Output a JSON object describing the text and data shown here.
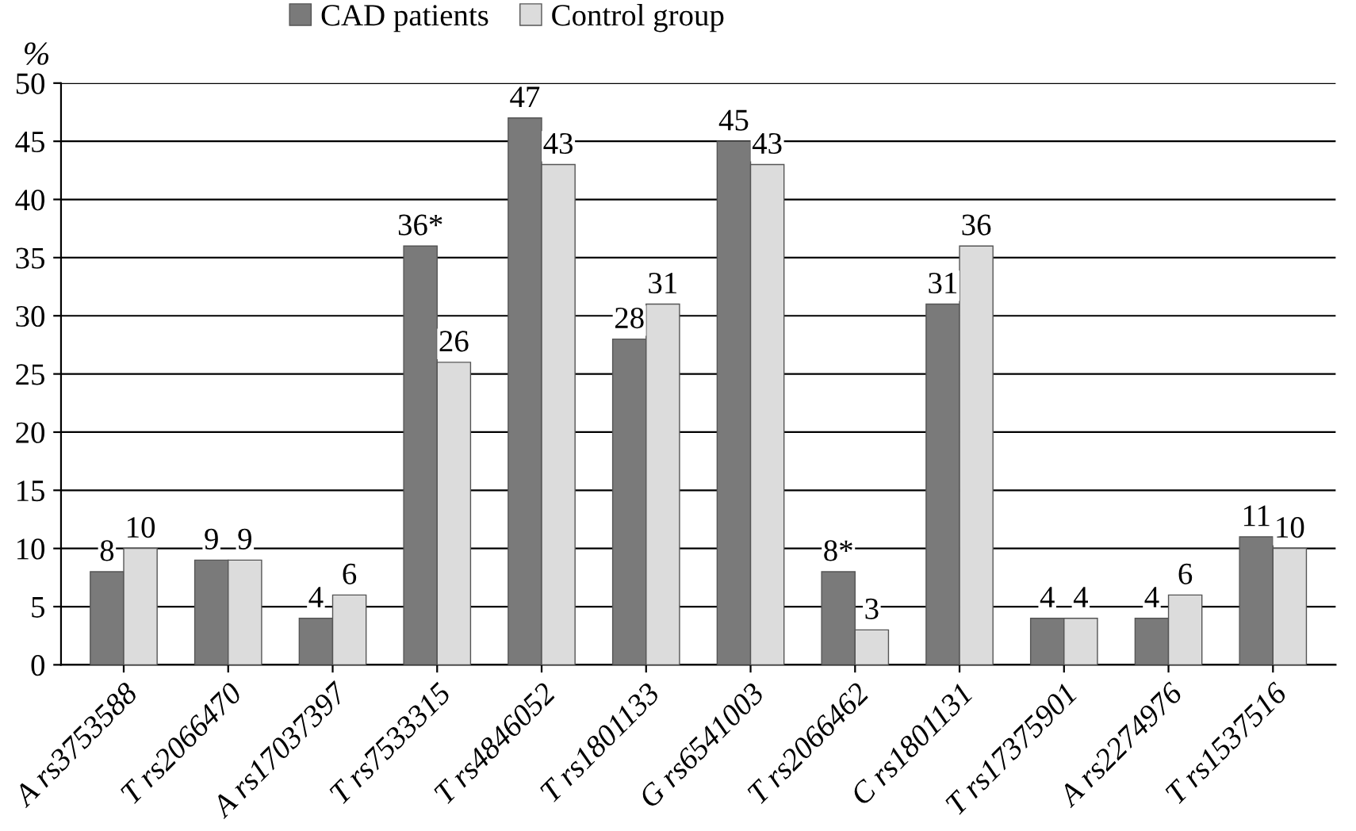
{
  "chart_data": {
    "type": "bar",
    "ylabel": "%",
    "categories": [
      "A rs3753588",
      "T rs2066470",
      "A rs17037397",
      "T rs7533315",
      "T rs4846052",
      "T rs1801133",
      "G rs6541003",
      "T rs2066462",
      "C rs1801131",
      "T rs17375901",
      "A rs2274976",
      "T rs1537516"
    ],
    "series": [
      {
        "name": "CAD patients",
        "color": "#7a7a7a",
        "values": [
          8,
          9,
          4,
          36,
          47,
          28,
          45,
          8,
          31,
          4,
          4,
          11
        ],
        "value_labels": [
          "8",
          "9",
          "4",
          "36*",
          "47",
          "28",
          "45",
          "8*",
          "31",
          "4",
          "4",
          "11"
        ]
      },
      {
        "name": "Control group",
        "color": "#dcdcdc",
        "values": [
          10,
          9,
          6,
          26,
          43,
          31,
          43,
          3,
          36,
          4,
          6,
          10
        ],
        "value_labels": [
          "10",
          "9",
          "6",
          "26",
          "43",
          "31",
          "43",
          "3",
          "36",
          "4",
          "6",
          "10"
        ]
      }
    ],
    "ylim": [
      0,
      50
    ],
    "yticks": [
      0,
      5,
      10,
      15,
      20,
      25,
      30,
      35,
      40,
      45,
      50
    ],
    "grid": "y",
    "legend": "top"
  }
}
